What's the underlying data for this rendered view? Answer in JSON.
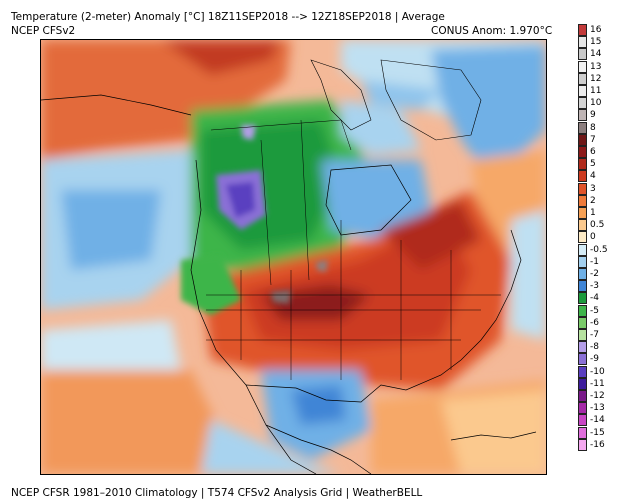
{
  "header": {
    "title": "Temperature (2-meter) Anomaly  [°C] 18Z11SEP2018 --> 12Z18SEP2018 | Average",
    "model": "NCEP  CFSv2",
    "conus_anomaly": "CONUS Anom: 1.970°C"
  },
  "footer": {
    "text": "NCEP CFSR 1981–2010 Climatology | T574 CFSv2 Analysis Grid | WeatherBELL"
  },
  "legend": {
    "levels": [
      {
        "label": "16",
        "color": "#c23a3a"
      },
      {
        "label": "15",
        "color": "#e6e6e6"
      },
      {
        "label": "14",
        "color": "#c9c9c9"
      },
      {
        "label": "13",
        "color": "#f2f2f2"
      },
      {
        "label": "12",
        "color": "#cfcfcf"
      },
      {
        "label": "11",
        "color": "#ededed"
      },
      {
        "label": "10",
        "color": "#d4d4d4"
      },
      {
        "label": "9",
        "color": "#bfb5b5"
      },
      {
        "label": "8",
        "color": "#8c7f7f"
      },
      {
        "label": "7",
        "color": "#6e1818"
      },
      {
        "label": "6",
        "color": "#8c1a1a"
      },
      {
        "label": "5",
        "color": "#b02a1c"
      },
      {
        "label": "4",
        "color": "#cc3a20"
      },
      {
        "label": "3",
        "color": "#e0542a"
      },
      {
        "label": "2",
        "color": "#ef7a3a"
      },
      {
        "label": "1",
        "color": "#f6a055"
      },
      {
        "label": "0.5",
        "color": "#fbc98e"
      },
      {
        "label": "0",
        "color": "#fdebc6"
      },
      {
        "label": "-0.5",
        "color": "#d5ecf7"
      },
      {
        "label": "-1",
        "color": "#a3d0ef"
      },
      {
        "label": "-2",
        "color": "#6fb0e6"
      },
      {
        "label": "-3",
        "color": "#3f85d6"
      },
      {
        "label": "-4",
        "color": "#1c9a3c"
      },
      {
        "label": "-5",
        "color": "#3eb54a"
      },
      {
        "label": "-6",
        "color": "#7acb6a"
      },
      {
        "label": "-7",
        "color": "#b6e2a0"
      },
      {
        "label": "-8",
        "color": "#b49ee8"
      },
      {
        "label": "-9",
        "color": "#8a70d6"
      },
      {
        "label": "-10",
        "color": "#5a3fc0"
      },
      {
        "label": "-11",
        "color": "#3d1c9c"
      },
      {
        "label": "-12",
        "color": "#7a1a8a"
      },
      {
        "label": "-13",
        "color": "#a52aa8"
      },
      {
        "label": "-14",
        "color": "#c845c4"
      },
      {
        "label": "-15",
        "color": "#e06edc"
      },
      {
        "label": "-16",
        "color": "#f5a8f0"
      }
    ]
  }
}
